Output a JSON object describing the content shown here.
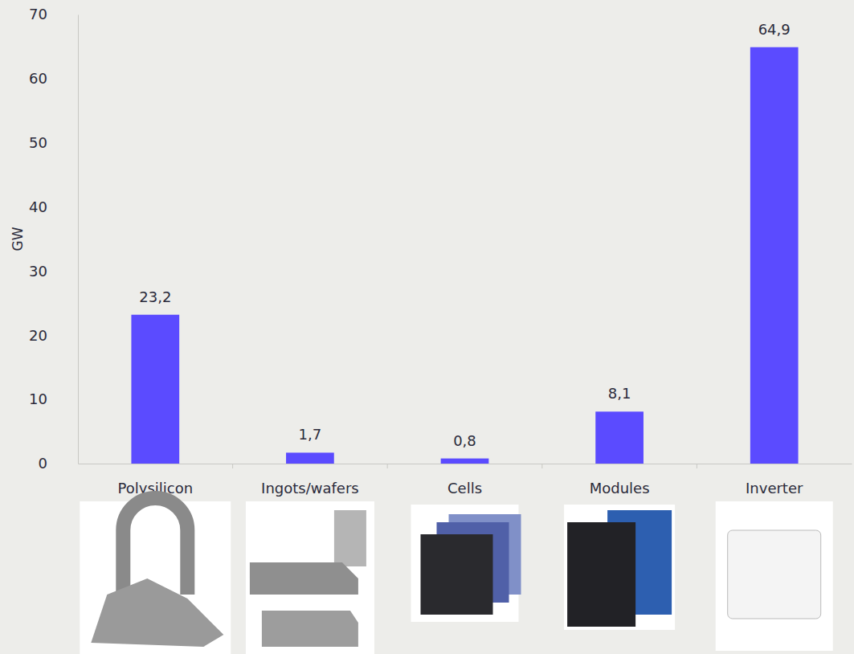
{
  "chart_data": {
    "type": "bar",
    "y_label": "GW",
    "categories": [
      "Polysilicon",
      "Ingots/wafers",
      "Cells",
      "Modules",
      "Inverter"
    ],
    "values": [
      23.2,
      1.7,
      0.8,
      8.1,
      64.9
    ],
    "value_labels": [
      "23,2",
      "1,7",
      "0,8",
      "8,1",
      "64,9"
    ],
    "color": "#5b4bff",
    "ylim": [
      0,
      70
    ],
    "yticks": [
      0,
      10,
      20,
      30,
      40,
      50,
      60,
      70
    ],
    "grid": false,
    "data_labels": true
  }
}
